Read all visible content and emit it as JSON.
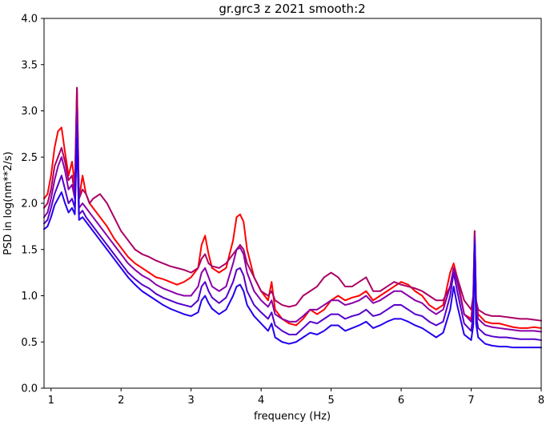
{
  "chart_data": {
    "type": "line",
    "title": "gr.grc3 z 2021 smooth:2",
    "xlabel": "frequency (Hz)",
    "ylabel": "PSD in log(nm**2/s)",
    "xlim": [
      0.9,
      8.0
    ],
    "ylim": [
      0.0,
      4.0
    ],
    "x_ticks": [
      1,
      2,
      3,
      4,
      5,
      6,
      7,
      8
    ],
    "x_tick_labels": [
      "1",
      "2",
      "3",
      "4",
      "5",
      "6",
      "7",
      "8"
    ],
    "y_ticks": [
      0.0,
      0.5,
      1.0,
      1.5,
      2.0,
      2.5,
      3.0,
      3.5,
      4.0
    ],
    "y_tick_labels": [
      "0.0",
      "0.5",
      "1.0",
      "1.5",
      "2.0",
      "2.5",
      "3.0",
      "3.5",
      "4.0"
    ],
    "grid": false,
    "legend": "none",
    "x": [
      0.9,
      0.95,
      1.0,
      1.05,
      1.1,
      1.15,
      1.2,
      1.25,
      1.3,
      1.34,
      1.37,
      1.4,
      1.45,
      1.5,
      1.55,
      1.6,
      1.7,
      1.8,
      1.9,
      2.0,
      2.1,
      2.2,
      2.3,
      2.4,
      2.5,
      2.6,
      2.7,
      2.8,
      2.9,
      3.0,
      3.1,
      3.15,
      3.2,
      3.25,
      3.3,
      3.4,
      3.5,
      3.6,
      3.65,
      3.7,
      3.75,
      3.8,
      3.9,
      4.0,
      4.1,
      4.15,
      4.2,
      4.3,
      4.4,
      4.5,
      4.6,
      4.7,
      4.8,
      4.9,
      5.0,
      5.1,
      5.2,
      5.3,
      5.4,
      5.5,
      5.6,
      5.7,
      5.8,
      5.9,
      6.0,
      6.1,
      6.2,
      6.3,
      6.4,
      6.5,
      6.6,
      6.7,
      6.75,
      6.8,
      6.9,
      7.0,
      7.03,
      7.05,
      7.07,
      7.1,
      7.2,
      7.3,
      7.4,
      7.5,
      7.6,
      7.7,
      7.8,
      7.9,
      8.0
    ],
    "series": [
      {
        "color": "#ff0000",
        "width": 2.0,
        "values": [
          2.05,
          2.1,
          2.3,
          2.6,
          2.78,
          2.82,
          2.55,
          2.3,
          2.45,
          2.2,
          3.25,
          2.05,
          2.3,
          2.1,
          2.0,
          1.95,
          1.85,
          1.75,
          1.62,
          1.52,
          1.42,
          1.35,
          1.3,
          1.25,
          1.2,
          1.18,
          1.15,
          1.12,
          1.15,
          1.2,
          1.3,
          1.55,
          1.65,
          1.45,
          1.3,
          1.25,
          1.3,
          1.6,
          1.85,
          1.88,
          1.8,
          1.5,
          1.2,
          1.05,
          0.95,
          1.15,
          0.85,
          0.75,
          0.7,
          0.68,
          0.75,
          0.85,
          0.8,
          0.85,
          0.95,
          1.0,
          0.95,
          0.98,
          1.0,
          1.05,
          0.95,
          1.0,
          1.05,
          1.1,
          1.15,
          1.12,
          1.05,
          1.0,
          0.9,
          0.85,
          0.9,
          1.25,
          1.35,
          1.2,
          0.8,
          0.75,
          1.0,
          1.7,
          0.95,
          0.8,
          0.72,
          0.7,
          0.7,
          0.68,
          0.66,
          0.65,
          0.65,
          0.66,
          0.65
        ]
      },
      {
        "color": "#aa0066",
        "width": 2.0,
        "values": [
          1.95,
          2.0,
          2.15,
          2.4,
          2.5,
          2.6,
          2.45,
          2.25,
          2.3,
          2.1,
          3.25,
          2.05,
          2.15,
          2.1,
          2.0,
          2.05,
          2.1,
          2.0,
          1.85,
          1.7,
          1.6,
          1.5,
          1.45,
          1.42,
          1.38,
          1.35,
          1.32,
          1.3,
          1.28,
          1.25,
          1.3,
          1.4,
          1.45,
          1.35,
          1.32,
          1.3,
          1.35,
          1.45,
          1.5,
          1.55,
          1.5,
          1.35,
          1.2,
          1.05,
          1.0,
          1.05,
          0.95,
          0.9,
          0.88,
          0.9,
          1.0,
          1.05,
          1.1,
          1.2,
          1.25,
          1.2,
          1.1,
          1.1,
          1.15,
          1.2,
          1.05,
          1.05,
          1.1,
          1.15,
          1.12,
          1.1,
          1.08,
          1.05,
          1.0,
          0.95,
          0.95,
          1.1,
          1.3,
          1.2,
          0.95,
          0.85,
          1.0,
          1.7,
          0.95,
          0.85,
          0.8,
          0.78,
          0.78,
          0.77,
          0.76,
          0.75,
          0.75,
          0.74,
          0.73
        ]
      },
      {
        "color": "#8800aa",
        "width": 2.0,
        "values": [
          1.85,
          1.9,
          2.05,
          2.25,
          2.4,
          2.5,
          2.35,
          2.15,
          2.2,
          2.05,
          3.0,
          1.95,
          2.0,
          1.95,
          1.9,
          1.85,
          1.75,
          1.65,
          1.55,
          1.45,
          1.35,
          1.28,
          1.22,
          1.18,
          1.12,
          1.08,
          1.05,
          1.02,
          1.0,
          1.0,
          1.1,
          1.25,
          1.3,
          1.2,
          1.1,
          1.05,
          1.1,
          1.35,
          1.5,
          1.52,
          1.45,
          1.25,
          1.05,
          0.95,
          0.88,
          0.95,
          0.8,
          0.75,
          0.72,
          0.72,
          0.78,
          0.85,
          0.85,
          0.9,
          0.95,
          0.95,
          0.9,
          0.92,
          0.95,
          1.0,
          0.92,
          0.95,
          1.0,
          1.05,
          1.05,
          1.0,
          0.95,
          0.92,
          0.85,
          0.8,
          0.85,
          1.1,
          1.3,
          1.15,
          0.8,
          0.72,
          0.9,
          1.65,
          0.9,
          0.75,
          0.68,
          0.66,
          0.65,
          0.64,
          0.63,
          0.62,
          0.62,
          0.62,
          0.61
        ]
      },
      {
        "color": "#5500cc",
        "width": 2.0,
        "values": [
          1.78,
          1.82,
          1.95,
          2.1,
          2.2,
          2.3,
          2.15,
          2.0,
          2.05,
          1.95,
          2.85,
          1.88,
          1.92,
          1.85,
          1.8,
          1.75,
          1.65,
          1.55,
          1.45,
          1.35,
          1.25,
          1.18,
          1.12,
          1.08,
          1.02,
          0.98,
          0.95,
          0.92,
          0.9,
          0.88,
          0.95,
          1.1,
          1.15,
          1.05,
          0.98,
          0.92,
          0.98,
          1.15,
          1.28,
          1.3,
          1.22,
          1.05,
          0.9,
          0.82,
          0.75,
          0.82,
          0.68,
          0.62,
          0.58,
          0.58,
          0.65,
          0.72,
          0.7,
          0.75,
          0.8,
          0.8,
          0.75,
          0.78,
          0.8,
          0.85,
          0.78,
          0.8,
          0.85,
          0.9,
          0.9,
          0.85,
          0.8,
          0.78,
          0.72,
          0.68,
          0.72,
          1.0,
          1.25,
          1.05,
          0.7,
          0.62,
          0.8,
          1.6,
          0.8,
          0.65,
          0.58,
          0.56,
          0.55,
          0.55,
          0.54,
          0.53,
          0.53,
          0.53,
          0.52
        ]
      },
      {
        "color": "#2200ee",
        "width": 2.0,
        "values": [
          1.72,
          1.75,
          1.85,
          1.98,
          2.05,
          2.12,
          2.0,
          1.9,
          1.95,
          1.88,
          2.7,
          1.82,
          1.85,
          1.8,
          1.75,
          1.7,
          1.6,
          1.5,
          1.4,
          1.3,
          1.2,
          1.12,
          1.05,
          1.0,
          0.95,
          0.9,
          0.86,
          0.83,
          0.8,
          0.78,
          0.82,
          0.95,
          1.0,
          0.92,
          0.86,
          0.8,
          0.85,
          1.0,
          1.1,
          1.12,
          1.05,
          0.9,
          0.78,
          0.7,
          0.62,
          0.7,
          0.55,
          0.5,
          0.48,
          0.5,
          0.55,
          0.6,
          0.58,
          0.62,
          0.68,
          0.68,
          0.62,
          0.65,
          0.68,
          0.72,
          0.65,
          0.68,
          0.72,
          0.75,
          0.75,
          0.72,
          0.68,
          0.65,
          0.6,
          0.55,
          0.6,
          0.85,
          1.1,
          0.9,
          0.58,
          0.52,
          0.68,
          1.55,
          0.7,
          0.55,
          0.48,
          0.46,
          0.45,
          0.45,
          0.44,
          0.44,
          0.44,
          0.44,
          0.44
        ]
      }
    ]
  }
}
